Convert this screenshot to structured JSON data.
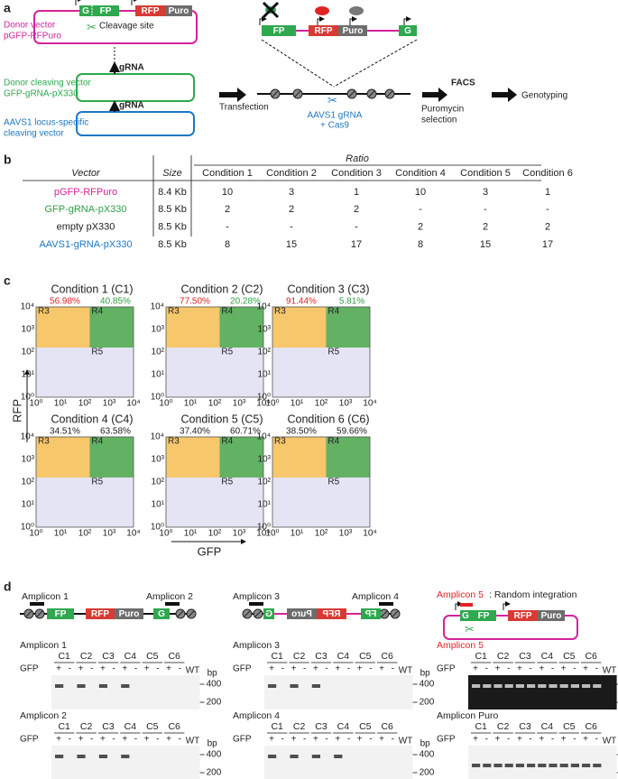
{
  "panel_a": {
    "label": "a",
    "donor_vector": [
      "Donor vector",
      "pGFP-RFPuro"
    ],
    "cleavage_site": "Cleavage site",
    "segments": {
      "g": "G",
      "fp": "FP",
      "rfp": "RFP",
      "puro": "Puro"
    },
    "grna": "gRNA",
    "donor_cleaving": [
      "Donor cleaving vector",
      "GFP-gRNA-pX330"
    ],
    "aavs1_cleaving": [
      "AAVS1 locus-specific",
      "cleaving vector"
    ],
    "steps": {
      "transfection": "Transfection",
      "aavs1_grna": [
        "AAVS1 gRNA",
        "+ Cas9"
      ],
      "puromycin": [
        "Puromycin",
        "selection"
      ],
      "facs": "FACS",
      "genotyping": "Genotyping"
    }
  },
  "panel_b": {
    "label": "b",
    "ratio": "Ratio",
    "header": [
      "Vector",
      "Size",
      "Condition 1",
      "Condition 2",
      "Condition 3",
      "Condition 4",
      "Condition 5",
      "Condition 6"
    ],
    "rows": [
      [
        "pGFP-RFPuro",
        "8.4 Kb",
        "10",
        "3",
        "1",
        "10",
        "3",
        "1"
      ],
      [
        "GFP-gRNA-pX330",
        "8.5 Kb",
        "2",
        "2",
        "2",
        "-",
        "-",
        "-"
      ],
      [
        "empty pX330",
        "8.5 Kb",
        "-",
        "-",
        "-",
        "2",
        "2",
        "2"
      ],
      [
        "AAVS1-gRNA-pX330",
        "8.5 Kb",
        "8",
        "15",
        "17",
        "8",
        "15",
        "17"
      ]
    ],
    "row_colors": [
      "#d4239a",
      "#2e9e46",
      "#222222",
      "#1f78bf"
    ]
  },
  "panel_c": {
    "label": "c",
    "y_label": "RFP",
    "x_label": "GFP",
    "ticks": [
      "10⁰",
      "10¹",
      "10²",
      "10³",
      "10⁴"
    ],
    "gates": [
      "R3",
      "R4",
      "R5"
    ],
    "highlight_colors": [
      "#e02424",
      "#2e9e46"
    ],
    "plots": [
      {
        "title": "Condition 1 (C1)",
        "left": "56.98%",
        "right": "40.85%",
        "highlight": true
      },
      {
        "title": "Condition 2 (C2)",
        "left": "77.50%",
        "right": "20.28%",
        "highlight": true
      },
      {
        "title": "Condition 3 (C3)",
        "left": "91.44%",
        "right": "5.81%",
        "highlight": true
      },
      {
        "title": "Condition 4 (C4)",
        "left": "34.51%",
        "right": "63.58%",
        "highlight": false
      },
      {
        "title": "Condition 5 (C5)",
        "left": "37.40%",
        "right": "60.71%",
        "highlight": false
      },
      {
        "title": "Condition 6 (C6)",
        "left": "38.50%",
        "right": "59.66%",
        "highlight": false
      }
    ]
  },
  "panel_d": {
    "label": "d",
    "amplicons": [
      "Amplicon 1",
      "Amplicon 2",
      "Amplicon 3",
      "Amplicon 4",
      "Amplicon 5"
    ],
    "random": ": Random integration",
    "gels": [
      "Amplicon 1",
      "Amplicon 3",
      "Amplicon 5",
      "Amplicon 2",
      "Amplicon 4",
      "Amplicon Puro"
    ],
    "lanes": [
      "C1",
      "C2",
      "C3",
      "C4",
      "C5",
      "C6"
    ],
    "signs": [
      "+",
      "-"
    ],
    "wt": "WT",
    "gfp": "GFP",
    "bp": "bp",
    "sizes": [
      "400",
      "200"
    ]
  }
}
